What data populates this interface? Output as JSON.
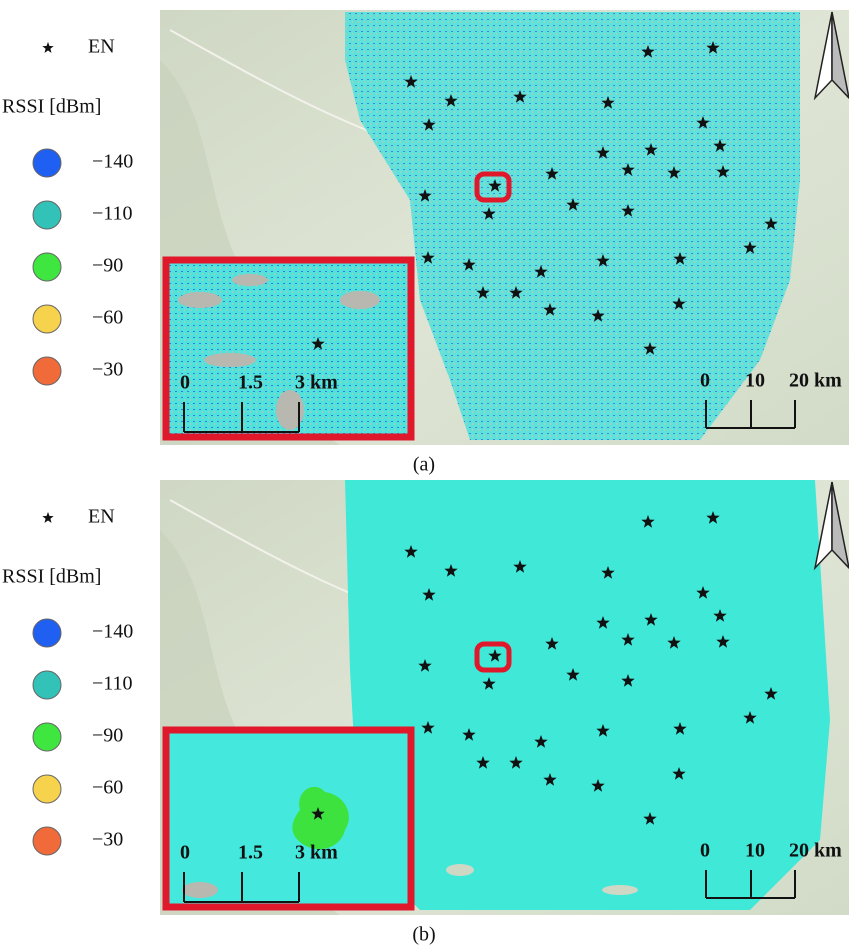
{
  "panels": [
    {
      "legend": {
        "star_label": "EN",
        "title": "RSSI [dBm]",
        "items": [
          {
            "label": "−140",
            "color": "#1f5ff2"
          },
          {
            "label": "−110",
            "color": "#33c2b8"
          },
          {
            "label": "−90",
            "color": "#3fe63f"
          },
          {
            "label": "−60",
            "color": "#f7d24c"
          },
          {
            "label": "−30",
            "color": "#f06a3a"
          }
        ]
      },
      "inset_scale": [
        "0",
        "1.5",
        "3 km"
      ],
      "map_scale": [
        "0",
        "10",
        "20 km"
      ],
      "caption": "(a)"
    },
    {
      "legend": {
        "star_label": "EN",
        "title": "RSSI [dBm]",
        "items": [
          {
            "label": "−140",
            "color": "#1f5ff2"
          },
          {
            "label": "−110",
            "color": "#33c2b8"
          },
          {
            "label": "−90",
            "color": "#3fe63f"
          },
          {
            "label": "−60",
            "color": "#f7d24c"
          },
          {
            "label": "−30",
            "color": "#f06a3a"
          }
        ]
      },
      "inset_scale": [
        "0",
        "1.5",
        "3 km"
      ],
      "map_scale": [
        "0",
        "10",
        "20 km"
      ],
      "caption": "(b)"
    }
  ]
}
